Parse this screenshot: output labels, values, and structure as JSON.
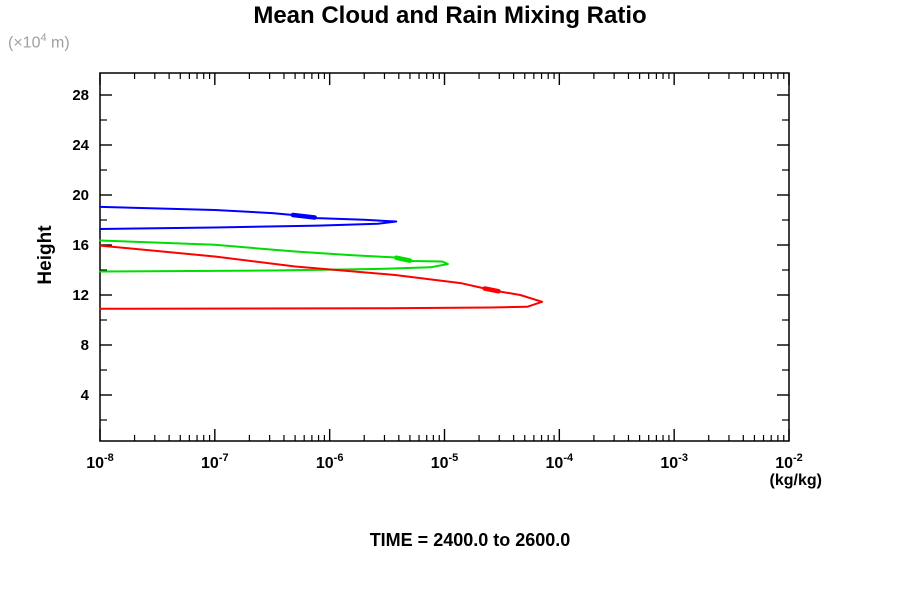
{
  "labels": {
    "y_units_prefix": "(×10",
    "y_units_exp": "4",
    "y_units_suffix": " m)"
  },
  "chart_data": {
    "type": "line",
    "title": "Mean Cloud and Rain Mixing Ratio",
    "xlabel": "(kg/kg)",
    "ylabel": "Height",
    "y_units": "(×10^4 m)",
    "footer": "TIME = 2400.0 to 2600.0",
    "x_scale": "log10",
    "xlim": [
      1e-08,
      0.01
    ],
    "ylim": [
      0.4,
      29.8
    ],
    "grid": false,
    "legend": "none",
    "x_tick_exponents": [
      -8,
      -7,
      -6,
      -5,
      -4,
      -3,
      -2
    ],
    "x_minor_tick_multiples": [
      2,
      3,
      4,
      5,
      6,
      7,
      8,
      9
    ],
    "y_major_ticks": [
      4,
      8,
      12,
      16,
      20,
      24,
      28
    ],
    "y_minor_ticks": [
      2,
      6,
      10,
      14,
      18,
      22,
      26
    ],
    "axis_color": "#000000",
    "units_label_color": "#a0a0a0",
    "series": [
      {
        "name": "blue-profile",
        "color": "#0000ff",
        "peak": {
          "log10_value": -5.42,
          "height_1e4m": 17.9
        },
        "height_range_1e4m": [
          17.3,
          19.05
        ],
        "points_log10value_height": [
          [
            -8.0,
            19.05
          ],
          [
            -7.0,
            18.8
          ],
          [
            -6.5,
            18.55
          ],
          [
            -6.32,
            18.4
          ],
          [
            -6.11,
            18.15
          ],
          [
            -5.7,
            18.02
          ],
          [
            -5.42,
            17.88
          ],
          [
            -5.58,
            17.7
          ],
          [
            -6.1,
            17.55
          ],
          [
            -7.0,
            17.4
          ],
          [
            -8.0,
            17.28
          ]
        ],
        "label_tick_segment": [
          [
            -6.32,
            18.4
          ],
          [
            -6.13,
            18.2
          ]
        ]
      },
      {
        "name": "green-profile",
        "color": "#00dd00",
        "peak": {
          "log10_value": -4.97,
          "height_1e4m": 14.5
        },
        "height_range_1e4m": [
          13.9,
          16.36
        ],
        "points_log10value_height": [
          [
            -8.0,
            16.36
          ],
          [
            -7.0,
            16.02
          ],
          [
            -6.3,
            15.48
          ],
          [
            -5.8,
            15.18
          ],
          [
            -5.42,
            15.0
          ],
          [
            -5.28,
            14.72
          ],
          [
            -5.02,
            14.68
          ],
          [
            -4.97,
            14.48
          ],
          [
            -5.12,
            14.22
          ],
          [
            -5.6,
            14.08
          ],
          [
            -6.5,
            13.96
          ],
          [
            -8.0,
            13.88
          ]
        ],
        "label_tick_segment": [
          [
            -5.42,
            14.98
          ],
          [
            -5.3,
            14.75
          ]
        ]
      },
      {
        "name": "red-profile",
        "color": "#ff0000",
        "peak": {
          "log10_value": -4.15,
          "height_1e4m": 11.5
        },
        "height_range_1e4m": [
          10.9,
          15.95
        ],
        "points_log10value_height": [
          [
            -8.0,
            15.95
          ],
          [
            -7.0,
            15.08
          ],
          [
            -6.3,
            14.28
          ],
          [
            -5.43,
            13.6
          ],
          [
            -4.85,
            12.94
          ],
          [
            -4.65,
            12.52
          ],
          [
            -4.52,
            12.28
          ],
          [
            -4.34,
            12.0
          ],
          [
            -4.15,
            11.46
          ],
          [
            -4.28,
            11.06
          ],
          [
            -4.6,
            11.0
          ],
          [
            -5.5,
            10.94
          ],
          [
            -8.0,
            10.9
          ]
        ],
        "label_tick_segment": [
          [
            -4.65,
            12.52
          ],
          [
            -4.53,
            12.3
          ]
        ]
      }
    ]
  }
}
